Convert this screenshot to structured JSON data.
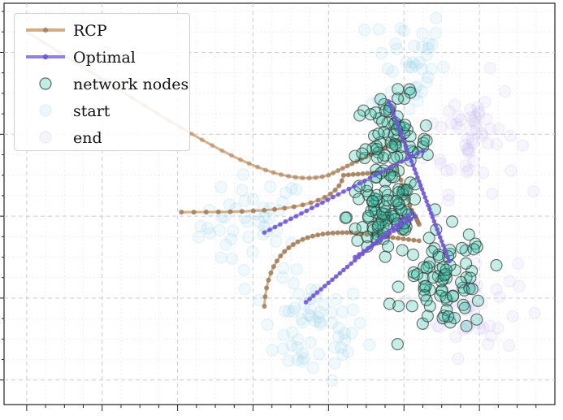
{
  "colors": {
    "rcp": "#c8915a",
    "rcp_marker": "#a07c5c",
    "optimal": "#6f55d6",
    "nodes_fill": "#2ec4a6",
    "nodes_edge": "#2b2b2b",
    "start": "#8fd0ea",
    "end": "#c9b6ec",
    "grid": "#c8c8c8"
  },
  "legend": {
    "placement": "upper-left",
    "items": [
      {
        "label": "RCP",
        "kind": "line",
        "color": "#c8915a"
      },
      {
        "label": "Optimal",
        "kind": "line",
        "color": "#6f55d6"
      },
      {
        "label": "network nodes",
        "kind": "marker",
        "color": "#2ec4a6"
      },
      {
        "label": "start",
        "kind": "faint-marker",
        "color": "#8fd0ea"
      },
      {
        "label": "end",
        "kind": "faint-marker",
        "color": "#c9b6ec"
      }
    ]
  },
  "chart_data": {
    "type": "scatter",
    "title": "",
    "xlabel": "",
    "ylabel": "",
    "xlim": [
      0,
      7.3
    ],
    "ylim": [
      0,
      4.9
    ],
    "grid": true,
    "tick_labels_visible": false,
    "network_clusters": [
      {
        "center": [
          5.15,
          3.15
        ],
        "spread": [
          0.25,
          0.3
        ],
        "count": 85
      },
      {
        "center": [
          5.05,
          2.3
        ],
        "spread": [
          0.25,
          0.25
        ],
        "count": 75
      },
      {
        "center": [
          5.85,
          1.5
        ],
        "spread": [
          0.28,
          0.3
        ],
        "count": 80
      }
    ],
    "start_clusters": [
      {
        "center": [
          3.3,
          2.2
        ],
        "spread": [
          0.35,
          0.3
        ],
        "count": 45
      },
      {
        "center": [
          4.1,
          0.9
        ],
        "spread": [
          0.35,
          0.3
        ],
        "count": 60
      },
      {
        "center": [
          5.35,
          4.2
        ],
        "spread": [
          0.25,
          0.35
        ],
        "count": 40
      }
    ],
    "end_clusters": [
      {
        "center": [
          6.2,
          3.3
        ],
        "spread": [
          0.3,
          0.35
        ],
        "count": 55
      },
      {
        "center": [
          6.2,
          1.2
        ],
        "spread": [
          0.3,
          0.3
        ],
        "count": 45
      }
    ],
    "series": [
      {
        "name": "RCP",
        "paths": [
          {
            "start": [
              0.3,
              4.55
            ],
            "ctrl1": [
              2.5,
              3.3
            ],
            "ctrl2": [
              3.5,
              2.6
            ],
            "c1": [
              4.3,
              2.8
            ],
            "end": [
              5.3,
              3.25
            ],
            "points": 45
          },
          {
            "start": [
              2.35,
              2.35
            ],
            "ctrl1": [
              3.4,
              2.35
            ],
            "ctrl2": [
              4.4,
              2.35
            ],
            "c1": [
              4.5,
              2.8
            ],
            "end": [
              5.2,
              2.85
            ],
            "points": 30
          },
          {
            "start": [
              3.45,
              1.2
            ],
            "ctrl1": [
              3.5,
              2.1
            ],
            "ctrl2": [
              4.2,
              2.1
            ],
            "c1": [
              4.6,
              2.1
            ],
            "end": [
              5.5,
              2.0
            ],
            "points": 35
          },
          {
            "start": [
              5.2,
              2.9
            ],
            "ctrl1": [
              5.35,
              2.5
            ],
            "ctrl2": [
              5.4,
              2.35
            ],
            "c1": [
              5.45,
              2.3
            ],
            "end": [
              5.5,
              2.2
            ],
            "points": 12
          }
        ]
      },
      {
        "name": "Optimal",
        "paths": [
          {
            "start": [
              5.1,
              3.7
            ],
            "end": [
              5.9,
              1.75
            ],
            "points": 40
          },
          {
            "start": [
              3.45,
              2.1
            ],
            "end": [
              5.55,
              3.1
            ],
            "points": 30
          },
          {
            "start": [
              4.0,
              1.25
            ],
            "end": [
              5.4,
              2.35
            ],
            "points": 28
          },
          {
            "start": [
              4.65,
              1.8
            ],
            "end": [
              5.45,
              2.3
            ],
            "points": 14
          }
        ]
      }
    ]
  }
}
